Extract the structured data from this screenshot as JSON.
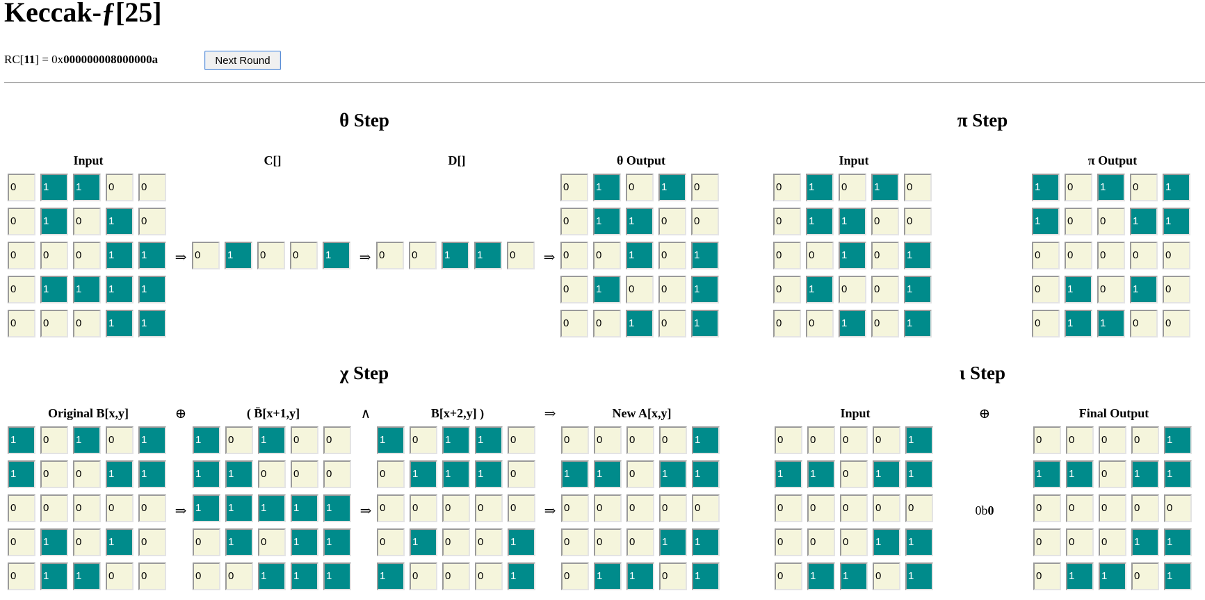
{
  "title": "Keccak-ƒ[25]",
  "rc": {
    "prefix": "RC[",
    "index": "11",
    "middle": "] = 0x",
    "value": "000000008000000a"
  },
  "next_round_label": "Next Round",
  "sections": {
    "theta": {
      "title": "θ Step",
      "input_label": "Input",
      "c_label": "C[]",
      "d_label": "D[]",
      "output_label": "θ Output",
      "input": [
        [
          0,
          1,
          1,
          0,
          0
        ],
        [
          0,
          1,
          0,
          1,
          0
        ],
        [
          0,
          0,
          0,
          1,
          1
        ],
        [
          0,
          1,
          1,
          1,
          1
        ],
        [
          0,
          0,
          0,
          1,
          1
        ]
      ],
      "c": [
        [
          0,
          1,
          0,
          0,
          1
        ]
      ],
      "d": [
        [
          0,
          0,
          1,
          1,
          0
        ]
      ],
      "output": [
        [
          0,
          1,
          0,
          1,
          0
        ],
        [
          0,
          1,
          1,
          0,
          0
        ],
        [
          0,
          0,
          1,
          0,
          1
        ],
        [
          0,
          1,
          0,
          0,
          1
        ],
        [
          0,
          0,
          1,
          0,
          1
        ]
      ]
    },
    "pi": {
      "title": "π Step",
      "input_label": "Input",
      "output_label": "π Output",
      "input": [
        [
          0,
          1,
          0,
          1,
          0
        ],
        [
          0,
          1,
          1,
          0,
          0
        ],
        [
          0,
          0,
          1,
          0,
          1
        ],
        [
          0,
          1,
          0,
          0,
          1
        ],
        [
          0,
          0,
          1,
          0,
          1
        ]
      ],
      "output": [
        [
          1,
          0,
          1,
          0,
          1
        ],
        [
          1,
          0,
          0,
          1,
          1
        ],
        [
          0,
          0,
          0,
          0,
          0
        ],
        [
          0,
          1,
          0,
          1,
          0
        ],
        [
          0,
          1,
          1,
          0,
          0
        ]
      ]
    },
    "chi": {
      "title": "χ Step",
      "original_label": "Original B[x,y]",
      "not_label": "( B̄[x+1,y]",
      "shift_label": "B[x+2,y] )",
      "new_label": "New A[x,y]",
      "xor_symbol": "⊕",
      "and_symbol": "∧",
      "arrow_symbol": "⇒",
      "original": [
        [
          1,
          0,
          1,
          0,
          1
        ],
        [
          1,
          0,
          0,
          1,
          1
        ],
        [
          0,
          0,
          0,
          0,
          0
        ],
        [
          0,
          1,
          0,
          1,
          0
        ],
        [
          0,
          1,
          1,
          0,
          0
        ]
      ],
      "not": [
        [
          1,
          0,
          1,
          0,
          0
        ],
        [
          1,
          1,
          0,
          0,
          0
        ],
        [
          1,
          1,
          1,
          1,
          1
        ],
        [
          0,
          1,
          0,
          1,
          1
        ],
        [
          0,
          0,
          1,
          1,
          1
        ]
      ],
      "shift": [
        [
          1,
          0,
          1,
          1,
          0
        ],
        [
          0,
          1,
          1,
          1,
          0
        ],
        [
          0,
          0,
          0,
          0,
          0
        ],
        [
          0,
          1,
          0,
          0,
          1
        ],
        [
          1,
          0,
          0,
          0,
          1
        ]
      ],
      "output": [
        [
          0,
          0,
          0,
          0,
          1
        ],
        [
          1,
          1,
          0,
          1,
          1
        ],
        [
          0,
          0,
          0,
          0,
          0
        ],
        [
          0,
          0,
          0,
          1,
          1
        ],
        [
          0,
          1,
          1,
          0,
          1
        ]
      ]
    },
    "iota": {
      "title": "ι Step",
      "input_label": "Input",
      "output_label": "Final Output",
      "xor_symbol": "⊕",
      "rc_prefix": "0b",
      "rc_bit": "0",
      "input": [
        [
          0,
          0,
          0,
          0,
          1
        ],
        [
          1,
          1,
          0,
          1,
          1
        ],
        [
          0,
          0,
          0,
          0,
          0
        ],
        [
          0,
          0,
          0,
          1,
          1
        ],
        [
          0,
          1,
          1,
          0,
          1
        ]
      ],
      "output": [
        [
          0,
          0,
          0,
          0,
          1
        ],
        [
          1,
          1,
          0,
          1,
          1
        ],
        [
          0,
          0,
          0,
          0,
          0
        ],
        [
          0,
          0,
          0,
          1,
          1
        ],
        [
          0,
          1,
          1,
          0,
          1
        ]
      ]
    }
  },
  "colors": {
    "bit_on": "#008b8b",
    "bit_off": "#f5f5dc"
  },
  "arrow": "⇒"
}
